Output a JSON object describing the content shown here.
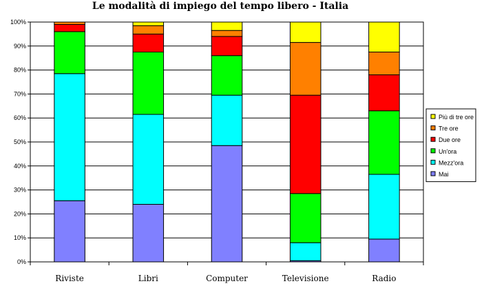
{
  "chart_data": {
    "type": "bar",
    "stacked": true,
    "normalized": true,
    "title": "Le modalità di impiego del tempo libero - Italia",
    "categories": [
      "Riviste",
      "Libri",
      "Computer",
      "Televisione",
      "Radio"
    ],
    "yticks": [
      "0%",
      "10%",
      "20%",
      "30%",
      "40%",
      "50%",
      "60%",
      "70%",
      "80%",
      "90%",
      "100%"
    ],
    "ylim": [
      0,
      100
    ],
    "legend_position": "right",
    "series": [
      {
        "name": "Mai",
        "color": "#8080FF",
        "values": [
          25.5,
          24,
          48.5,
          0.5,
          9.5
        ]
      },
      {
        "name": "Mezz'ora",
        "color": "#00FFFF",
        "values": [
          53,
          37.5,
          21,
          7.5,
          27
        ]
      },
      {
        "name": "Un'ora",
        "color": "#00FF00",
        "values": [
          17.5,
          26,
          16.5,
          20.5,
          26.5
        ]
      },
      {
        "name": "Due ore",
        "color": "#FF0000",
        "values": [
          3,
          7.5,
          8,
          41,
          15
        ]
      },
      {
        "name": "Tre ore",
        "color": "#FF8000",
        "values": [
          1,
          3.5,
          2.5,
          22,
          9.5
        ]
      },
      {
        "name": "Più di tre ore",
        "color": "#FFFF00",
        "values": [
          0,
          1.5,
          3.5,
          8.5,
          12.5
        ]
      }
    ]
  }
}
